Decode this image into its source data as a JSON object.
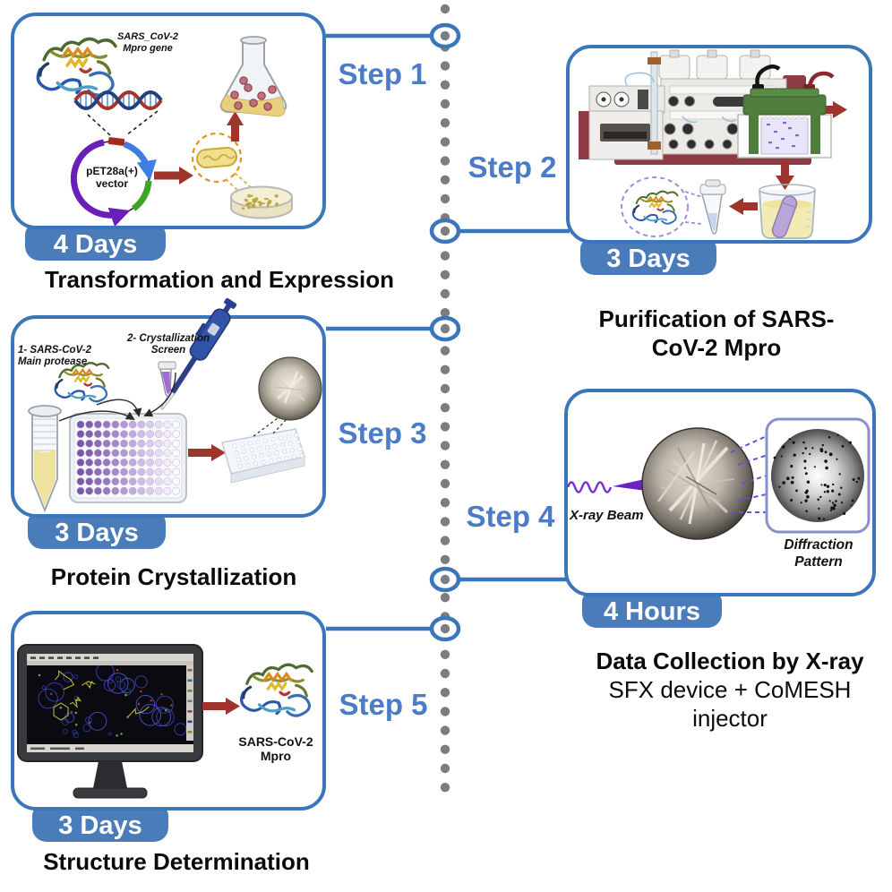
{
  "colors": {
    "box_border": "#3b76ba",
    "badge_bg": "#4a7cba",
    "step_label": "#4a7cc8",
    "timeline_dot": "#7d7d7d",
    "arrow_red": "#9e342c"
  },
  "steps": [
    {
      "step_label": "Step 1",
      "duration": "4 Days",
      "caption": "Transformation and Expression",
      "labels": {
        "gene_line1": "SARS_CoV-2",
        "gene_line2": "Mpro gene",
        "vector_line1": "pET28a(+)",
        "vector_line2": "vector"
      }
    },
    {
      "step_label": "Step 2",
      "duration": "3 Days",
      "caption_line1": "Purification of SARS-",
      "caption_line2": "CoV-2 Mpro"
    },
    {
      "step_label": "Step 3",
      "duration": "3 Days",
      "caption": "Protein Crystallization",
      "labels": {
        "protein_line1": "1- SARS-CoV-2",
        "protein_line2": "Main protease",
        "screen_line1": "2- Crystallization",
        "screen_line2": "Screen"
      }
    },
    {
      "step_label": "Step 4",
      "duration": "4 Hours",
      "caption_line1": "Data Collection by X-ray",
      "caption_line2": "SFX device + CoMESH",
      "caption_line3": "injector",
      "labels": {
        "beam": "X-ray Beam",
        "diffraction_line1": "Diffraction",
        "diffraction_line2": "Pattern"
      }
    },
    {
      "step_label": "Step 5",
      "duration": "3 Days",
      "caption": "Structure Determination",
      "labels": {
        "protein": "SARS-CoV-2 Mpro"
      }
    }
  ]
}
